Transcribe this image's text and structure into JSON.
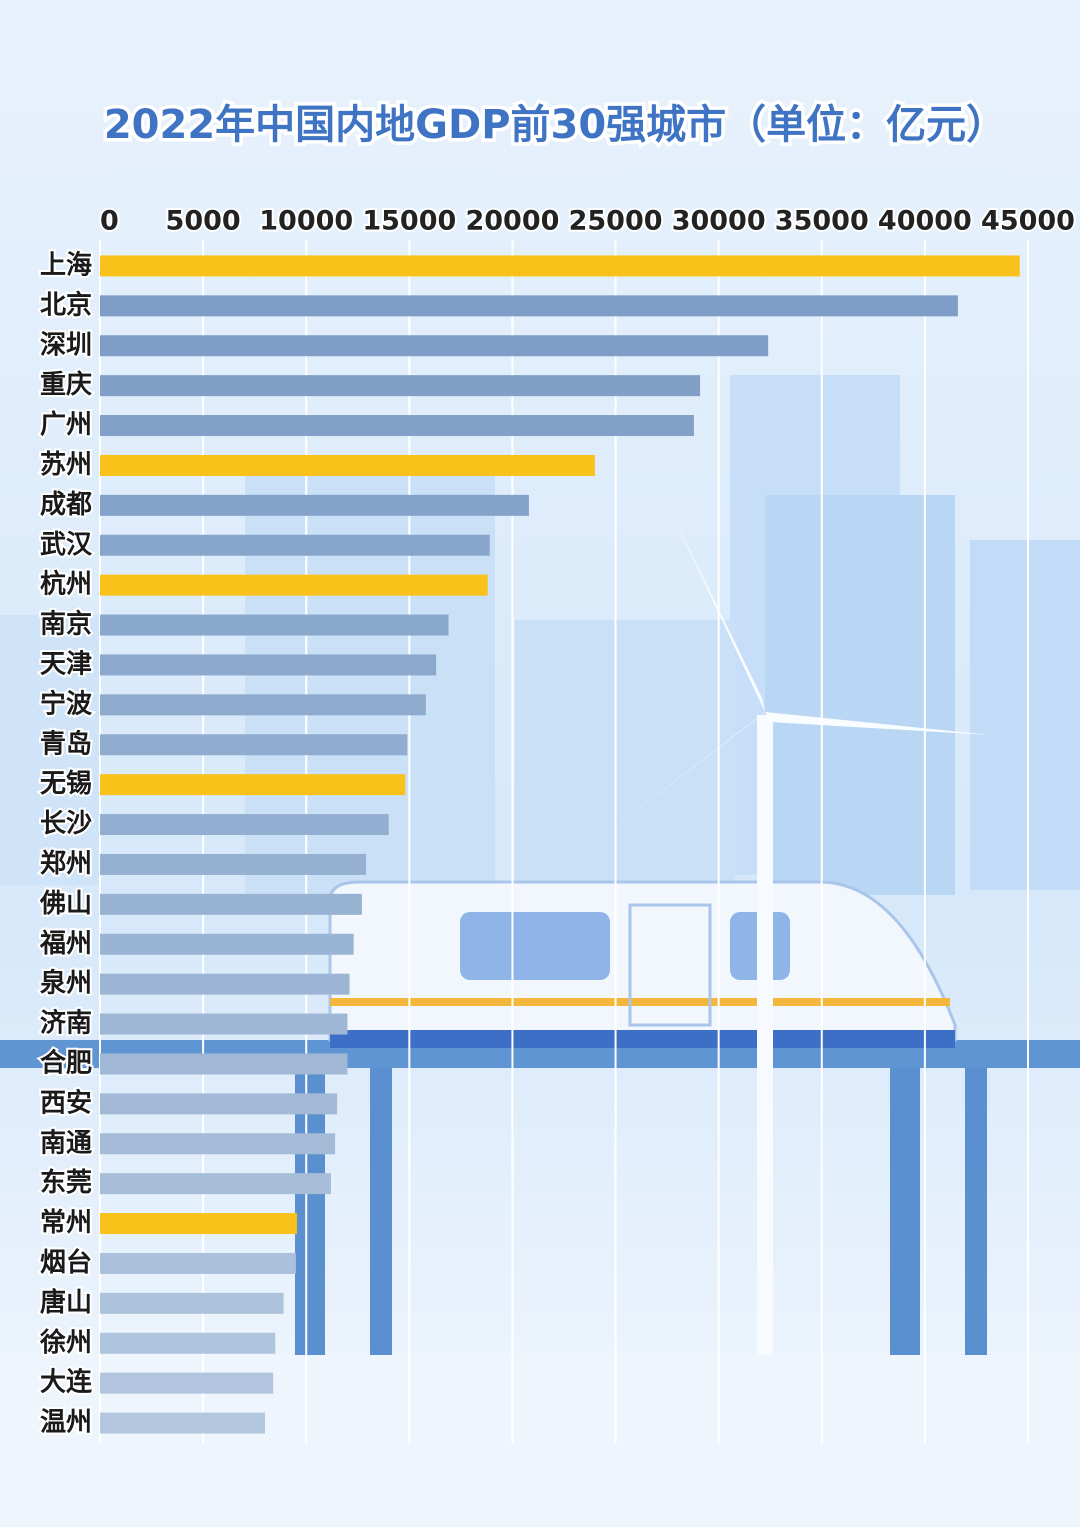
{
  "chart_data": {
    "type": "bar",
    "orientation": "horizontal",
    "title": "2022年中国内地GDP前30强城市（单位：亿元）",
    "categories": [
      "上海",
      "北京",
      "深圳",
      "重庆",
      "广州",
      "苏州",
      "成都",
      "武汉",
      "杭州",
      "南京",
      "天津",
      "宁波",
      "青岛",
      "无锡",
      "长沙",
      "郑州",
      "佛山",
      "福州",
      "泉州",
      "济南",
      "合肥",
      "西安",
      "南通",
      "东莞",
      "常州",
      "烟台",
      "唐山",
      "徐州",
      "大连",
      "温州"
    ],
    "values": [
      44600,
      41600,
      32400,
      29100,
      28800,
      24000,
      20800,
      18900,
      18800,
      16900,
      16300,
      15800,
      14900,
      14800,
      14000,
      12900,
      12700,
      12300,
      12100,
      12000,
      12000,
      11500,
      11400,
      11200,
      9550,
      9500,
      8900,
      8500,
      8400,
      8000
    ],
    "colors": [
      "#f8c21b",
      "#7f9dc6",
      "#7f9dc6",
      "#829fc7",
      "#82a0c8",
      "#f8c21b",
      "#85a3ca",
      "#88a5cb",
      "#f8c21b",
      "#8aa7cc",
      "#8ca9cd",
      "#8eaacd",
      "#90accf",
      "#f8c21b",
      "#93aed0",
      "#96b0d1",
      "#98b2d2",
      "#9ab4d3",
      "#9cb5d4",
      "#9eb7d5",
      "#a0b8d6",
      "#a3bad7",
      "#a5bcd8",
      "#a7bed9",
      "#f8c21b",
      "#abc1db",
      "#adc3dc",
      "#afc4dd",
      "#b1c6de",
      "#b3c7df"
    ],
    "xlim": [
      0,
      45000
    ],
    "xticks": [
      0,
      5000,
      10000,
      15000,
      20000,
      25000,
      30000,
      35000,
      40000,
      45000
    ],
    "grid": true
  }
}
